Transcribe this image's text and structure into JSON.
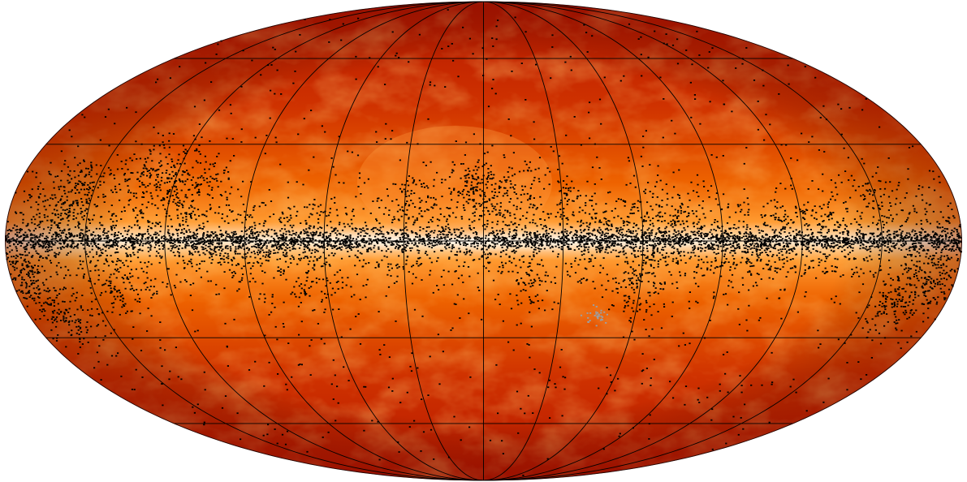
{
  "map": {
    "projection": "mollweide",
    "coordinate_frame": "galactic",
    "graticule": {
      "longitude_step_deg": 30,
      "latitude_step_deg": 30,
      "color": "#000000"
    },
    "background_colormap": [
      "#a30d00",
      "#c42300",
      "#e64b00",
      "#ff7a0a",
      "#ffb25a",
      "#fff0dc"
    ],
    "sources": {
      "marker_color": "#000000",
      "highlight_color": "#9aa0a6"
    }
  }
}
